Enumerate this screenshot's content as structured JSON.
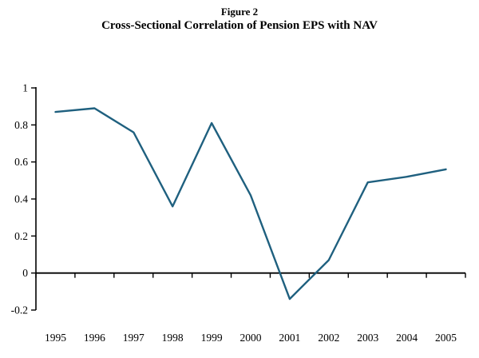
{
  "chart_data": {
    "type": "line",
    "title": "Figure 2",
    "subtitle": "Cross-Sectional Correlation of Pension EPS with NAV",
    "x": [
      1995,
      1996,
      1997,
      1998,
      1999,
      2000,
      2001,
      2002,
      2003,
      2004,
      2005
    ],
    "x_labels": [
      "1995",
      "1996",
      "1997",
      "1998",
      "1999",
      "2000",
      "2001",
      "2002",
      "2003",
      "2004",
      "2005"
    ],
    "values": [
      0.87,
      0.89,
      0.76,
      0.36,
      0.81,
      0.42,
      -0.14,
      0.07,
      0.49,
      0.52,
      0.56
    ],
    "xlabel": "",
    "ylabel": "",
    "ylim": [
      -0.2,
      1
    ],
    "yticks": [
      1,
      0.8,
      0.6,
      0.4,
      0.2,
      0,
      -0.2
    ],
    "ytick_labels": [
      "1",
      "0.8",
      "0.6",
      "0.4",
      "0.2",
      "0",
      "-0.2"
    ],
    "line_color": "#1f607f",
    "axis_color": "#000000",
    "grid": false,
    "legend": false
  }
}
